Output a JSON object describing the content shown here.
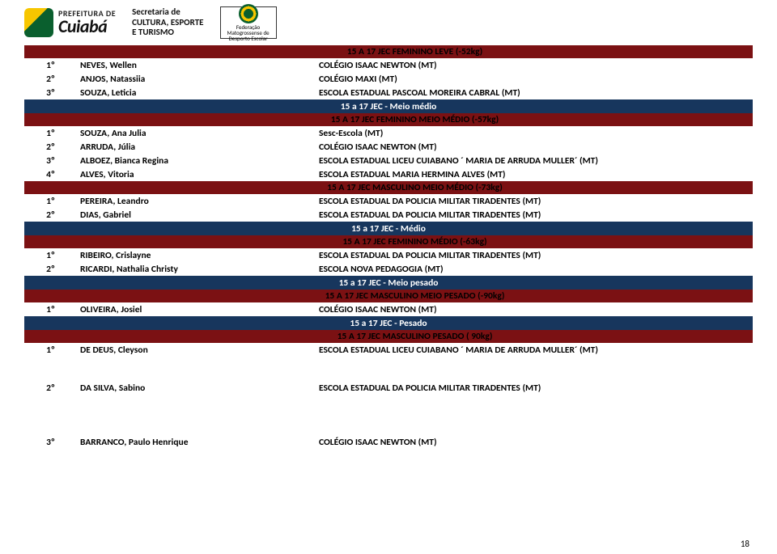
{
  "header": {
    "prefeitura_small": "PREFEITURA DE",
    "prefeitura_big": "Cuiabá",
    "secretaria_l1": "Secretaria de",
    "secretaria_l2": "CULTURA, ESPORTE",
    "secretaria_l3": "E TURISMO",
    "federation": "Federação Matogrossense de Desporto Escolar"
  },
  "page_number": "18",
  "sections": [
    {
      "type": "maroon",
      "text": "15 A 17 JEC FEMININO LEVE (-52kg)"
    },
    {
      "type": "row",
      "place": "1º",
      "name": "NEVES, Wellen",
      "school": "COLÉGIO ISAAC NEWTON (MT)"
    },
    {
      "type": "row",
      "place": "2º",
      "name": "ANJOS, Natassiia",
      "school": "COLÉGIO MAXI (MT)"
    },
    {
      "type": "row",
      "place": "3º",
      "name": "SOUZA, Leticia",
      "school": "ESCOLA ESTADUAL PASCOAL MOREIRA CABRAL (MT)"
    },
    {
      "type": "navy",
      "text": "15 a 17 JEC - Meio médio"
    },
    {
      "type": "maroon",
      "text": "15 A 17 JEC FEMININO MEIO MÉDIO (-57kg)"
    },
    {
      "type": "row",
      "place": "1º",
      "name": "SOUZA, Ana Julia",
      "school": "Sesc-Escola (MT)"
    },
    {
      "type": "row",
      "place": "2º",
      "name": "ARRUDA, Júlia",
      "school": "COLÉGIO ISAAC NEWTON (MT)"
    },
    {
      "type": "row",
      "place": "3º",
      "name": "ALBOEZ, Bianca Regina",
      "school": "ESCOLA ESTADUAL LICEU CUIABANO ´ MARIA DE ARRUDA MULLER´ (MT)"
    },
    {
      "type": "row",
      "place": "4º",
      "name": "ALVES, Vitoria",
      "school": "ESCOLA ESTADUAL MARIA HERMINA ALVES (MT)"
    },
    {
      "type": "maroon",
      "text": "15 A 17 JEC MASCULINO MEIO MÉDIO (-73kg)"
    },
    {
      "type": "row",
      "place": "1º",
      "name": "PEREIRA, Leandro",
      "school": "ESCOLA ESTADUAL DA POLICIA MILITAR TIRADENTES (MT)"
    },
    {
      "type": "row",
      "place": "2º",
      "name": "DIAS, Gabriel",
      "school": "ESCOLA ESTADUAL DA POLICIA MILITAR TIRADENTES (MT)"
    },
    {
      "type": "navy",
      "text": "15 a 17 JEC - Médio"
    },
    {
      "type": "maroon",
      "text": "15 A 17 JEC FEMININO MÉDIO (-63kg)"
    },
    {
      "type": "row",
      "place": "1º",
      "name": "RIBEIRO, Crislayne",
      "school": "ESCOLA ESTADUAL DA POLICIA MILITAR TIRADENTES (MT)"
    },
    {
      "type": "row",
      "place": "2º",
      "name": "RICARDI, Nathalia Christy",
      "school": "ESCOLA NOVA PEDAGOGIA (MT)"
    },
    {
      "type": "navy",
      "text": "15 a 17 JEC - Meio pesado"
    },
    {
      "type": "maroon",
      "text": "15 A 17 JEC MASCULINO MEIO PESADO (-90kg)"
    },
    {
      "type": "row",
      "place": "1º",
      "name": "OLIVEIRA, Josiel",
      "school": "COLÉGIO ISAAC NEWTON (MT)"
    },
    {
      "type": "navy",
      "text": "15 a 17 JEC - Pesado"
    },
    {
      "type": "maroon",
      "text": "15 A 17 JEC MASCULINO PESADO ( 90kg)"
    },
    {
      "type": "row",
      "place": "1º",
      "name": "DE DEUS, Cleyson",
      "school": "ESCOLA ESTADUAL LICEU CUIABANO ´ MARIA DE ARRUDA MULLER´ (MT)"
    },
    {
      "type": "gap"
    },
    {
      "type": "row",
      "place": "2º",
      "name": "DA SILVA, Sabino",
      "school": "ESCOLA ESTADUAL DA POLICIA MILITAR TIRADENTES (MT)"
    },
    {
      "type": "gap2"
    },
    {
      "type": "row",
      "place": "3º",
      "name": "BARRANCO, Paulo Henrique",
      "school": "COLÉGIO ISAAC NEWTON (MT)"
    }
  ]
}
